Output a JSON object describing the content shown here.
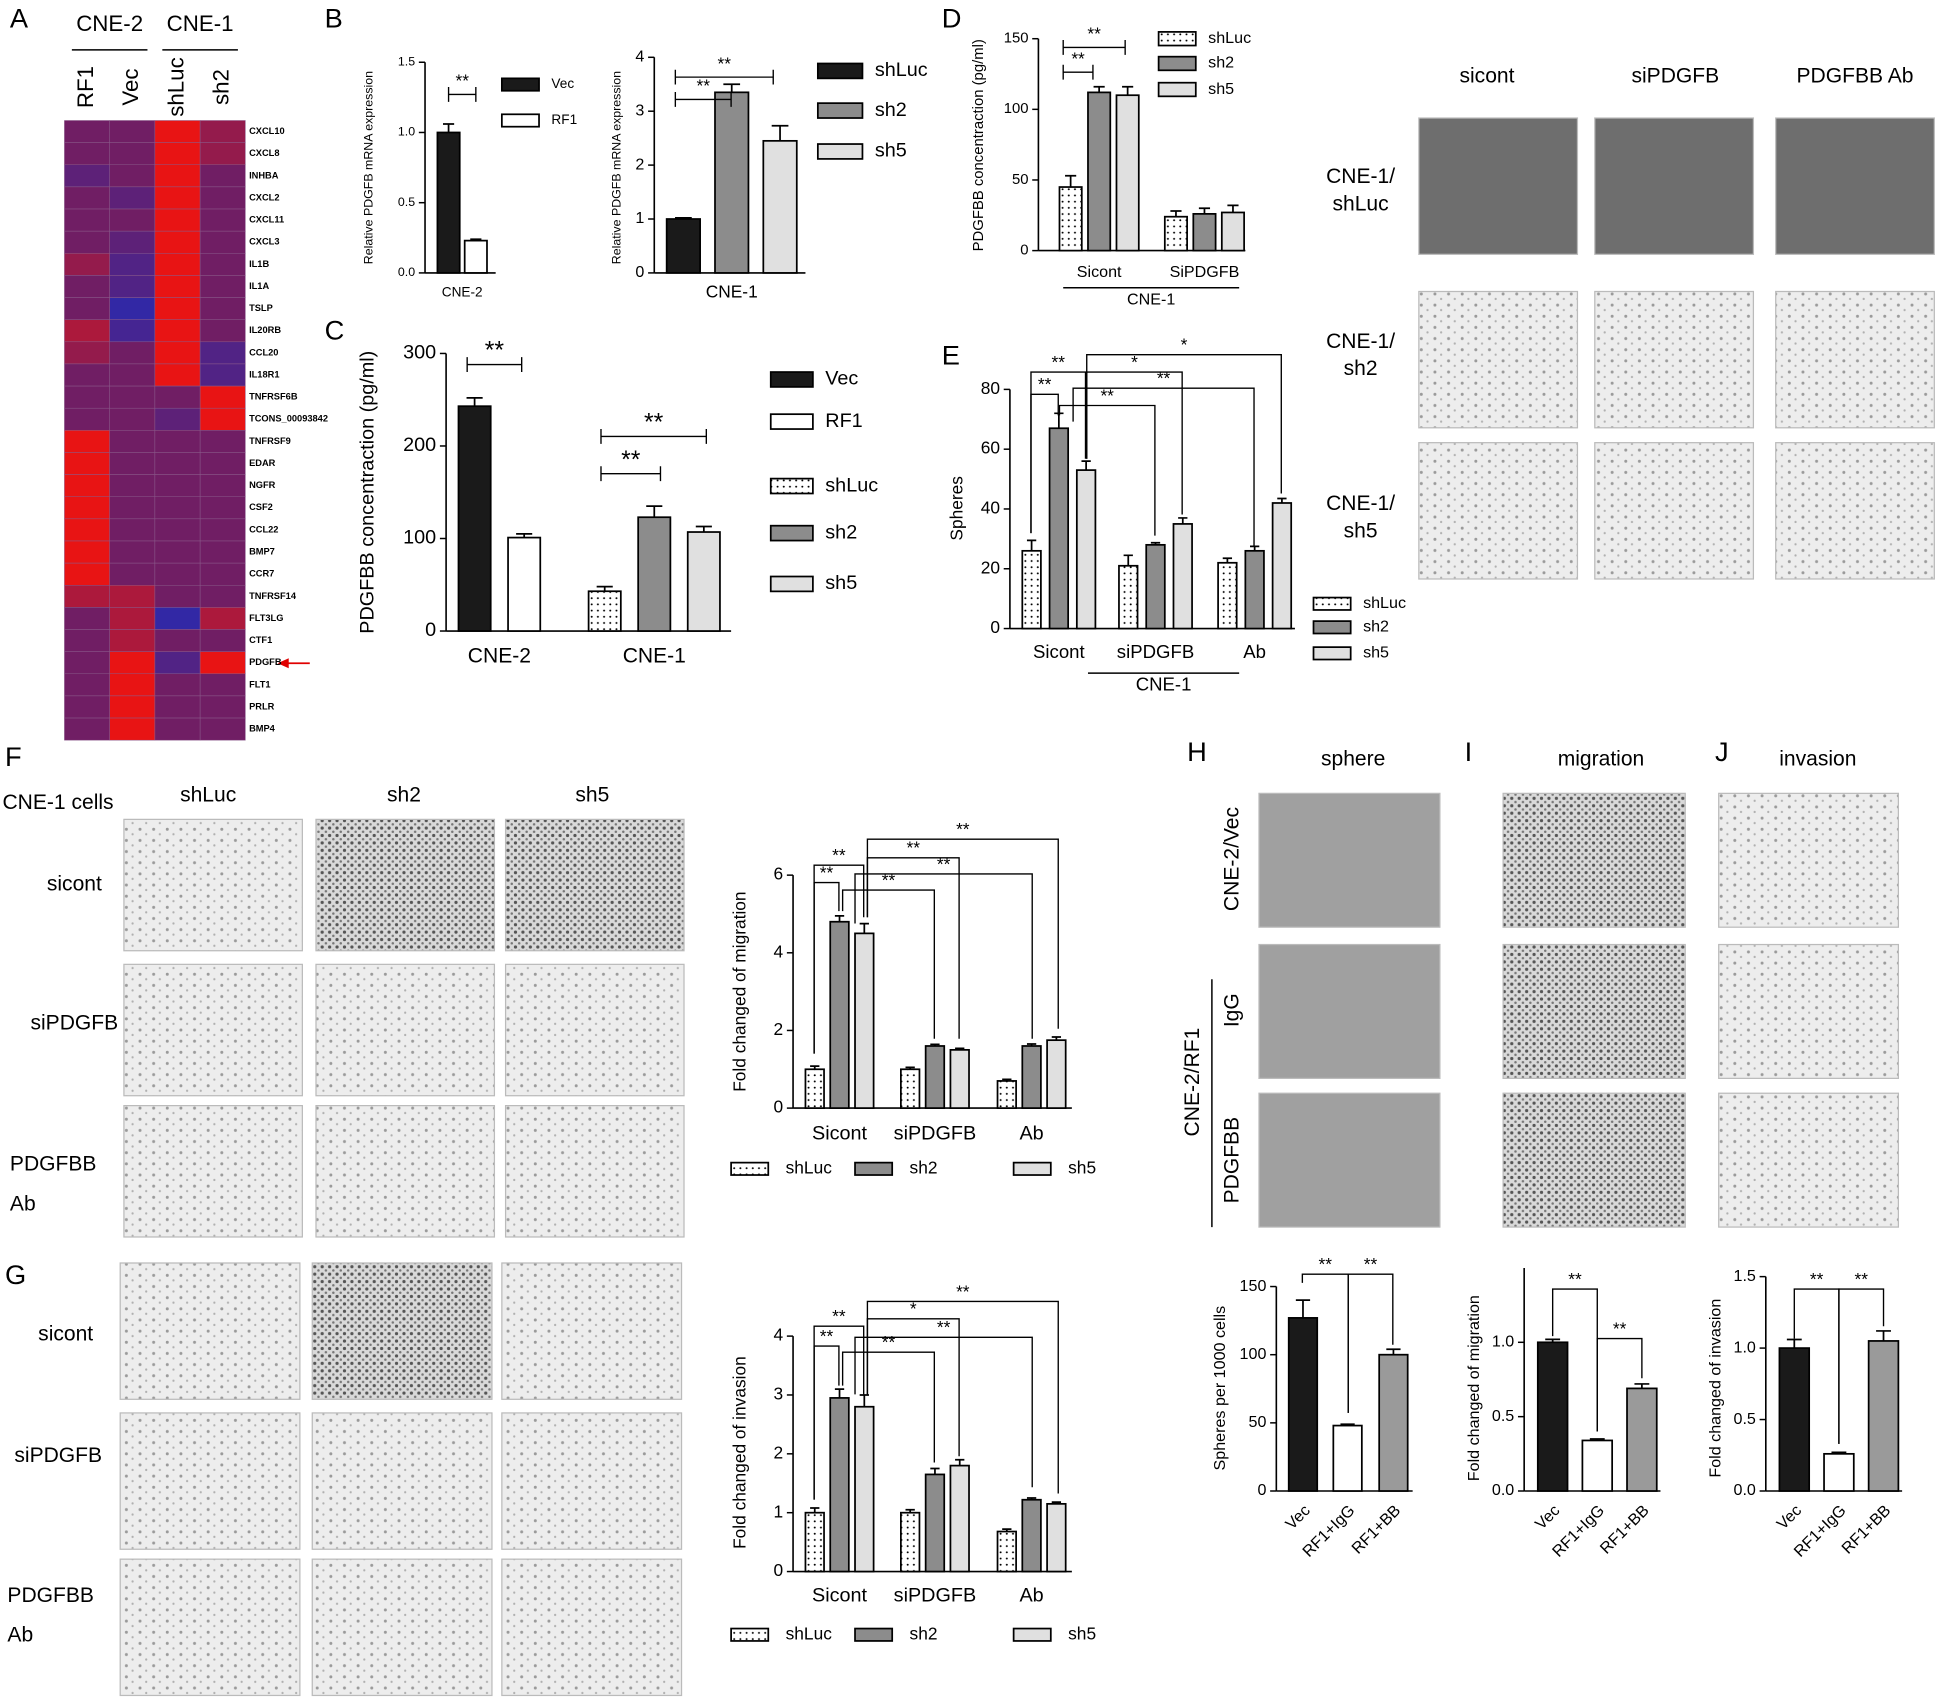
{
  "panel_labels": [
    "A",
    "B",
    "C",
    "D",
    "E",
    "F",
    "G",
    "H",
    "I",
    "J"
  ],
  "image_panels": [
    {
      "columns": [
        "sicont",
        "siPDGFB",
        "PDGFBB Ab"
      ],
      "rows": [
        [
          "CNE-1/",
          "shLuc"
        ],
        [
          "CNE-1/",
          "sh2"
        ],
        [
          "CNE-1/",
          "sh5"
        ]
      ]
    },
    {
      "title": "CNE-1 cells",
      "columns": [
        "shLuc",
        "sh2",
        "sh5"
      ],
      "rows": [
        [
          "sicont"
        ],
        [
          "siPDGFB"
        ],
        [
          "PDGFBB",
          "Ab"
        ]
      ]
    },
    {
      "rows": [
        [
          "sicont"
        ],
        [
          "siPDGFB"
        ],
        [
          "PDGFBB",
          "Ab"
        ]
      ]
    },
    {
      "columns": [
        "sphere",
        "migration",
        "invasion"
      ],
      "rows": [
        "CNE-2/Vec",
        "IgG",
        "PDGFBB"
      ],
      "group": "CNE-2/RF1"
    }
  ],
  "chart_data": [
    {
      "type": "heatmap",
      "groups": [
        "CNE-2",
        "CNE-1"
      ],
      "columns": [
        "RF1",
        "Vec",
        "shLuc",
        "sh2"
      ],
      "rows": [
        "CXCL10",
        "CXCL8",
        "INHBA",
        "CXCL2",
        "CXCL11",
        "CXCL3",
        "IL1B",
        "IL1A",
        "TSLP",
        "IL20RB",
        "CCL20",
        "IL18R1",
        "TNFRSF6B",
        "TCONS_00093842",
        "TNFRSF9",
        "EDAR",
        "NGFR",
        "CSF2",
        "CCL22",
        "BMP7",
        "CCR7",
        "TNFRSF14",
        "FLT3LG",
        "CTF1",
        "PDGFB",
        "FLT1",
        "PRLR",
        "BMP4"
      ],
      "values": [
        [
          0,
          0,
          1,
          0.3
        ],
        [
          0,
          0,
          1,
          0.3
        ],
        [
          -0.3,
          0,
          1,
          0
        ],
        [
          0,
          -0.3,
          1,
          0
        ],
        [
          0,
          0,
          1,
          0
        ],
        [
          0,
          -0.3,
          1,
          0
        ],
        [
          0.3,
          -0.5,
          1,
          0
        ],
        [
          0,
          -0.5,
          1,
          0
        ],
        [
          0,
          -1,
          1,
          0
        ],
        [
          0.5,
          -0.7,
          1,
          0
        ],
        [
          0.3,
          0,
          1,
          -0.5
        ],
        [
          0,
          0,
          1,
          -0.5
        ],
        [
          0,
          0,
          0,
          1
        ],
        [
          0,
          0,
          -0.3,
          1
        ],
        [
          1,
          0,
          0,
          0
        ],
        [
          1,
          0,
          0,
          0
        ],
        [
          1,
          0,
          0,
          0
        ],
        [
          1,
          0,
          0,
          0
        ],
        [
          1,
          0,
          0,
          0
        ],
        [
          1,
          0,
          0,
          0
        ],
        [
          1,
          0,
          0,
          0
        ],
        [
          0.5,
          0.5,
          0,
          0
        ],
        [
          0,
          0.5,
          -1,
          0.5
        ],
        [
          0,
          0.5,
          0,
          0
        ],
        [
          0,
          1,
          -0.5,
          1
        ],
        [
          0,
          1,
          0,
          0
        ],
        [
          0,
          1,
          0,
          0
        ],
        [
          0,
          1,
          0,
          0
        ]
      ]
    },
    {
      "type": "bar",
      "ylabel": "Relative PDGFB mRNA expression",
      "categories": [
        "CNE-2"
      ],
      "series": [
        {
          "name": "Vec",
          "color": "#1a1a1a",
          "values": [
            1.0
          ],
          "errors": [
            0.06
          ]
        },
        {
          "name": "RF1",
          "color": "#ffffff",
          "values": [
            0.23
          ],
          "errors": [
            0.01
          ]
        }
      ],
      "ylim": [
        0,
        1.5
      ],
      "yticks": [
        {
          "value": 0,
          "label": "0.0"
        },
        0.5,
        {
          "value": 1,
          "label": "1.0"
        },
        1.5
      ],
      "annotations": [
        "**"
      ]
    },
    {
      "type": "bar",
      "ylabel": "Relative PDGFB mRNA expression",
      "categories": [
        "CNE-1"
      ],
      "series": [
        {
          "name": "shLuc",
          "color": "#1a1a1a",
          "values": [
            1.0
          ],
          "errors": [
            0.02
          ]
        },
        {
          "name": "sh2",
          "color": "#8c8c8c",
          "values": [
            3.35
          ],
          "errors": [
            0.15
          ]
        },
        {
          "name": "sh5",
          "color": "#e0e0e0",
          "values": [
            2.45
          ],
          "errors": [
            0.28
          ]
        }
      ],
      "ylim": [
        0,
        4
      ],
      "yticks": [
        0,
        1,
        2,
        3,
        4
      ],
      "annotations": [
        "**",
        "**"
      ]
    },
    {
      "type": "bar",
      "ylabel": "PDGFBB concentraction (pg/ml)",
      "categories": [
        "CNE-2",
        "CNE-1"
      ],
      "series": [
        {
          "name": "Vec",
          "color": "#1a1a1a",
          "values": [
            243,
            null
          ],
          "errors": [
            9,
            null
          ]
        },
        {
          "name": "RF1",
          "color": "#ffffff",
          "values": [
            101,
            null
          ],
          "errors": [
            4,
            null
          ]
        },
        {
          "name": "shLuc",
          "color": "#ffffff",
          "hatch": "dots",
          "values": [
            null,
            43
          ],
          "errors": [
            null,
            5
          ]
        },
        {
          "name": "sh2",
          "color": "#8c8c8c",
          "values": [
            null,
            123
          ],
          "errors": [
            null,
            12
          ]
        },
        {
          "name": "sh5",
          "color": "#e0e0e0",
          "values": [
            null,
            107
          ],
          "errors": [
            null,
            6
          ]
        }
      ],
      "ylim": [
        0,
        300
      ],
      "yticks": [
        0,
        100,
        200,
        300
      ],
      "annotations": [
        "**",
        "**",
        "**"
      ]
    },
    {
      "type": "bar",
      "ylabel": "PDGFBB concentraction (pg/ml)",
      "categories": [
        "Sicont",
        "SiPDGFB"
      ],
      "group_label": "CNE-1",
      "series": [
        {
          "name": "shLuc",
          "color": "#ffffff",
          "hatch": "dots",
          "values": [
            45,
            24
          ],
          "errors": [
            8,
            4
          ]
        },
        {
          "name": "sh2",
          "color": "#8c8c8c",
          "values": [
            112,
            26
          ],
          "errors": [
            4,
            4
          ]
        },
        {
          "name": "sh5",
          "color": "#e0e0e0",
          "values": [
            110,
            27
          ],
          "errors": [
            6,
            5
          ]
        }
      ],
      "ylim": [
        0,
        150
      ],
      "yticks": [
        0,
        50,
        100,
        150
      ],
      "annotations": [
        "**",
        "**"
      ]
    },
    {
      "type": "bar",
      "ylabel": "Spheres",
      "categories": [
        "Sicont",
        "siPDGFB",
        "Ab"
      ],
      "group_label": "CNE-1",
      "series": [
        {
          "name": "shLuc",
          "color": "#ffffff",
          "hatch": "dots",
          "values": [
            26,
            21,
            22
          ],
          "errors": [
            3.5,
            3.5,
            1.5
          ]
        },
        {
          "name": "sh2",
          "color": "#8c8c8c",
          "values": [
            67,
            28,
            26
          ],
          "errors": [
            5,
            0.7,
            1.5
          ]
        },
        {
          "name": "sh5",
          "color": "#e0e0e0",
          "values": [
            53,
            35,
            42
          ],
          "errors": [
            3,
            2,
            1.5
          ]
        }
      ],
      "ylim": [
        0,
        80
      ],
      "yticks": [
        0,
        20,
        40,
        60,
        80
      ],
      "annotations": [
        "**",
        "**",
        "*",
        "*",
        "**",
        "**"
      ]
    },
    {
      "type": "bar",
      "ylabel": "Fold changed of migration",
      "categories": [
        "Sicont",
        "siPDGFB",
        "Ab"
      ],
      "series": [
        {
          "name": "shLuc",
          "color": "#ffffff",
          "hatch": "dots",
          "values": [
            1.0,
            1.0,
            0.7
          ],
          "errors": [
            0.08,
            0.05,
            0.04
          ]
        },
        {
          "name": "sh2",
          "color": "#8c8c8c",
          "values": [
            4.8,
            1.6,
            1.6
          ],
          "errors": [
            0.15,
            0.04,
            0.05
          ]
        },
        {
          "name": "sh5",
          "color": "#e0e0e0",
          "values": [
            4.5,
            1.5,
            1.75
          ],
          "errors": [
            0.25,
            0.04,
            0.08
          ]
        }
      ],
      "ylim": [
        0,
        6
      ],
      "yticks": [
        0,
        2,
        4,
        6
      ],
      "annotations": [
        "**",
        "**",
        "**",
        "**",
        "**",
        "**"
      ]
    },
    {
      "type": "bar",
      "ylabel": "Fold changed of invasion",
      "categories": [
        "Sicont",
        "siPDGFB",
        "Ab"
      ],
      "series": [
        {
          "name": "shLuc",
          "color": "#ffffff",
          "hatch": "dots",
          "values": [
            1.0,
            1.0,
            0.68
          ],
          "errors": [
            0.08,
            0.05,
            0.04
          ]
        },
        {
          "name": "sh2",
          "color": "#8c8c8c",
          "values": [
            2.95,
            1.65,
            1.22
          ],
          "errors": [
            0.15,
            0.1,
            0.03
          ]
        },
        {
          "name": "sh5",
          "color": "#e0e0e0",
          "values": [
            2.8,
            1.8,
            1.15
          ],
          "errors": [
            0.2,
            0.1,
            0.03
          ]
        }
      ],
      "ylim": [
        0,
        4
      ],
      "yticks": [
        0,
        1,
        2,
        3,
        4
      ],
      "annotations": [
        "**",
        "**",
        "**",
        "*",
        "**",
        "**"
      ]
    },
    {
      "type": "bar",
      "ylabel": "Spheres per 1000 cells",
      "categories": [
        "Vec",
        "RF1+IgG",
        "RF1+BB"
      ],
      "values": [
        127,
        48,
        100
      ],
      "errors": [
        13,
        1,
        4
      ],
      "colors": [
        "#1a1a1a",
        "#ffffff",
        "#9a9a9a"
      ],
      "ylim": [
        0,
        150
      ],
      "yticks": [
        0,
        50,
        100,
        150
      ],
      "annotations": [
        "**",
        "**"
      ]
    },
    {
      "type": "bar",
      "ylabel": "Fold changed of migration",
      "categories": [
        "Vec",
        "RF1+IgG",
        "RF1+BB"
      ],
      "values": [
        1.0,
        0.34,
        0.69
      ],
      "errors": [
        0.02,
        0.01,
        0.03
      ],
      "colors": [
        "#1a1a1a",
        "#ffffff",
        "#9a9a9a"
      ],
      "ylim": [
        0,
        1.5
      ],
      "yticks": [
        {
          "value": 0,
          "label": "0.0"
        },
        0.5,
        {
          "value": 1,
          "label": "1.0"
        }
      ],
      "annotations": [
        "**",
        "**"
      ]
    },
    {
      "type": "bar",
      "ylabel": "Fold changed of invasion",
      "categories": [
        "Vec",
        "RF1+IgG",
        "RF1+BB"
      ],
      "values": [
        1.0,
        0.26,
        1.05
      ],
      "errors": [
        0.06,
        0.01,
        0.07
      ],
      "colors": [
        "#1a1a1a",
        "#ffffff",
        "#9a9a9a"
      ],
      "ylim": [
        0,
        1.5
      ],
      "yticks": [
        {
          "value": 0,
          "label": "0.0"
        },
        0.5,
        {
          "value": 1,
          "label": "1.0"
        },
        1.5
      ],
      "annotations": [
        "**",
        "**"
      ]
    }
  ]
}
